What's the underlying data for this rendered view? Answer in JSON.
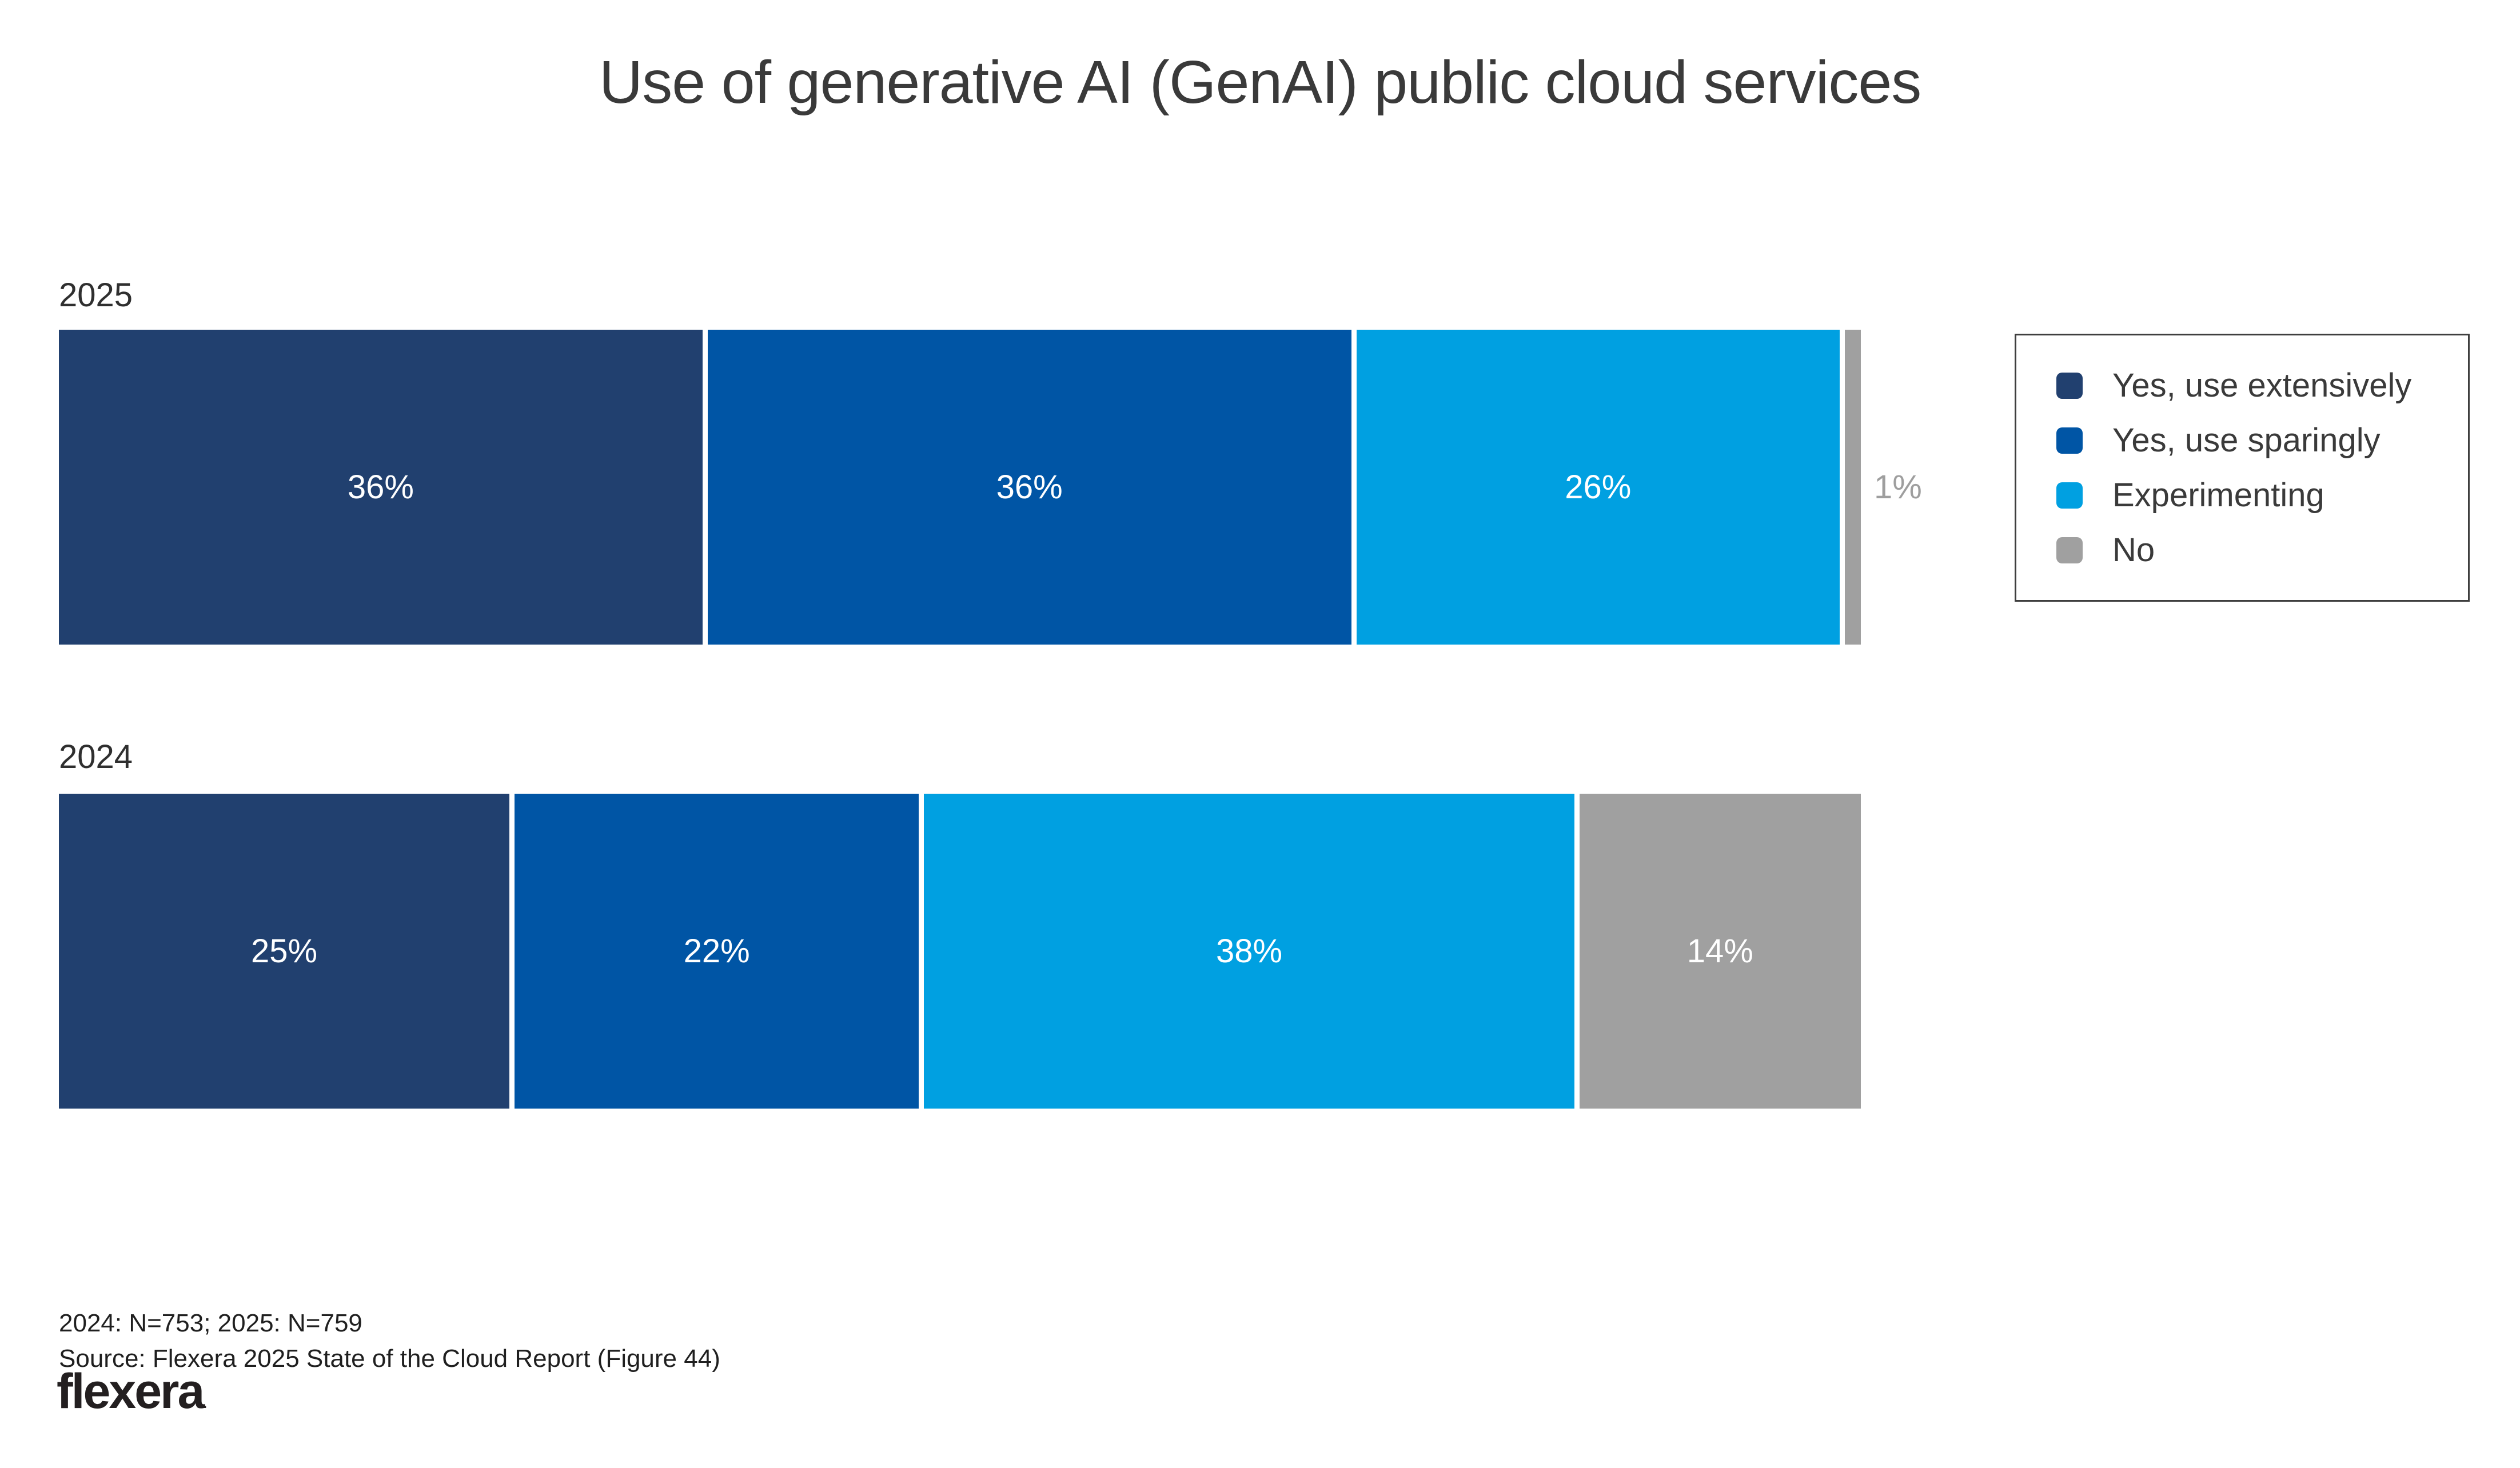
{
  "title": "Use of generative AI (GenAI) public cloud services",
  "colors": {
    "extensively": "#21406F",
    "sparingly": "#0055A5",
    "experimenting": "#00A0E1",
    "no": "#A0A0A0",
    "heading_text": "#3A3A3A",
    "outside_label_text": "#9E9E9E",
    "segment_label_text": "#FFFFFF"
  },
  "chart_data": {
    "type": "bar",
    "stacked": true,
    "orientation": "horizontal",
    "categories": [
      "2025",
      "2024"
    ],
    "series": [
      {
        "name": "Yes, use extensively",
        "color": "#21406F",
        "values": [
          36,
          25
        ]
      },
      {
        "name": "Yes, use sparingly",
        "color": "#0055A5",
        "values": [
          36,
          22
        ]
      },
      {
        "name": "Experimenting",
        "color": "#00A0E1",
        "values": [
          26,
          38
        ]
      },
      {
        "name": "No",
        "color": "#A0A0A0",
        "values": [
          1,
          14
        ]
      }
    ],
    "value_unit": "%",
    "xlim": [
      0,
      100
    ],
    "grid": false,
    "legend_position": "right",
    "notes": "2025 'No' value (1%) is labeled outside the bar in gray; all other values labeled inside segments in white."
  },
  "legend": {
    "items": [
      {
        "label": "Yes, use extensively"
      },
      {
        "label": "Yes, use sparingly"
      },
      {
        "label": "Experimenting"
      },
      {
        "label": "No"
      }
    ]
  },
  "footer": {
    "sample_note": "2024: N=753; 2025: N=759",
    "source": "Source: Flexera 2025 State of the Cloud Report (Figure 44)",
    "logo_text": "flexera",
    "logo_mark": "."
  }
}
